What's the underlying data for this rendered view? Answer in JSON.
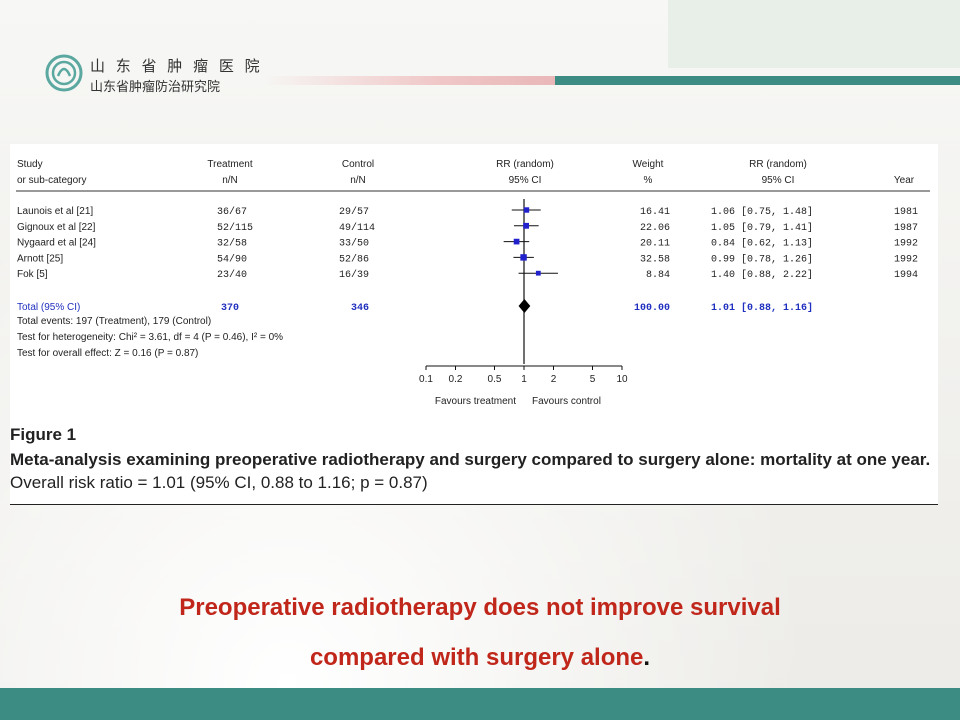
{
  "header": {
    "org_name": "山 东 省 肿 瘤 医 院",
    "org_subtitle": "山东省肿瘤防治研究院"
  },
  "colors": {
    "accent_teal": "#3d8c84",
    "accent_pink": "#f0c7c7",
    "marker_blue": "#2222cc",
    "conclusion_red": "#c0271a"
  },
  "chart_data": {
    "type": "forest",
    "scale": "log",
    "columns": {
      "study": [
        "Study",
        "or sub-category"
      ],
      "treatment": [
        "Treatment",
        "n/N"
      ],
      "control": [
        "Control",
        "n/N"
      ],
      "rr_plot": [
        "RR (random)",
        "95% CI"
      ],
      "weight": [
        "Weight",
        "%"
      ],
      "rr_text": [
        "RR (random)",
        "95% CI"
      ],
      "year": [
        "",
        "Year"
      ]
    },
    "studies": [
      {
        "study": "Launois et al [21]",
        "treatment": "36/67",
        "control": "29/57",
        "weight": "16.41",
        "rr_text": "1.06 [0.75, 1.48]",
        "year": "1981",
        "rr": 1.06,
        "lo": 0.75,
        "hi": 1.48,
        "w": 16.41
      },
      {
        "study": "Gignoux et al [22]",
        "treatment": "52/115",
        "control": "49/114",
        "weight": "22.06",
        "rr_text": "1.05 [0.79, 1.41]",
        "year": "1987",
        "rr": 1.05,
        "lo": 0.79,
        "hi": 1.41,
        "w": 22.06
      },
      {
        "study": "Nygaard et al [24]",
        "treatment": "32/58",
        "control": "33/50",
        "weight": "20.11",
        "rr_text": "0.84 [0.62, 1.13]",
        "year": "1992",
        "rr": 0.84,
        "lo": 0.62,
        "hi": 1.13,
        "w": 20.11
      },
      {
        "study": "Arnott [25]",
        "treatment": "54/90",
        "control": "52/86",
        "weight": "32.58",
        "rr_text": "0.99 [0.78, 1.26]",
        "year": "1992",
        "rr": 0.99,
        "lo": 0.78,
        "hi": 1.26,
        "w": 32.58
      },
      {
        "study": "Fok [5]",
        "treatment": "23/40",
        "control": "16/39",
        "weight": "8.84",
        "rr_text": "1.40 [0.88, 2.22]",
        "year": "1994",
        "rr": 1.4,
        "lo": 0.88,
        "hi": 2.22,
        "w": 8.84
      }
    ],
    "total": {
      "label": "Total (95% CI)",
      "treatment": "370",
      "control": "346",
      "weight": "100.00",
      "rr_text": "1.01 [0.88, 1.16]",
      "rr": 1.01,
      "lo": 0.88,
      "hi": 1.16
    },
    "notes": [
      "Total events: 197 (Treatment), 179 (Control)",
      "Test for heterogeneity: Chi² = 3.61, df = 4 (P = 0.46), I² = 0%",
      "Test for overall effect: Z = 0.16 (P = 0.87)"
    ],
    "ticks": [
      {
        "value": 0.1,
        "label": "0.1"
      },
      {
        "value": 0.2,
        "label": "0.2"
      },
      {
        "value": 0.5,
        "label": "0.5"
      },
      {
        "value": 1,
        "label": "1"
      },
      {
        "value": 2,
        "label": "2"
      },
      {
        "value": 5,
        "label": "5"
      },
      {
        "value": 10,
        "label": "10"
      }
    ],
    "xlim": [
      0.1,
      10
    ],
    "favours_left": "Favours treatment",
    "favours_right": "Favours control"
  },
  "figure": {
    "label": "Figure 1",
    "caption_bold": "Meta-analysis examining preoperative radiotherapy and surgery compared to surgery alone: mortality at one year.",
    "caption_rest": " Overall risk ratio = 1.01 (95% CI, 0.88 to 1.16; p = 0.87)"
  },
  "conclusion": {
    "line1": "Preoperative radiotherapy does not improve survival",
    "line2": "compared with surgery alone",
    "period": "."
  }
}
